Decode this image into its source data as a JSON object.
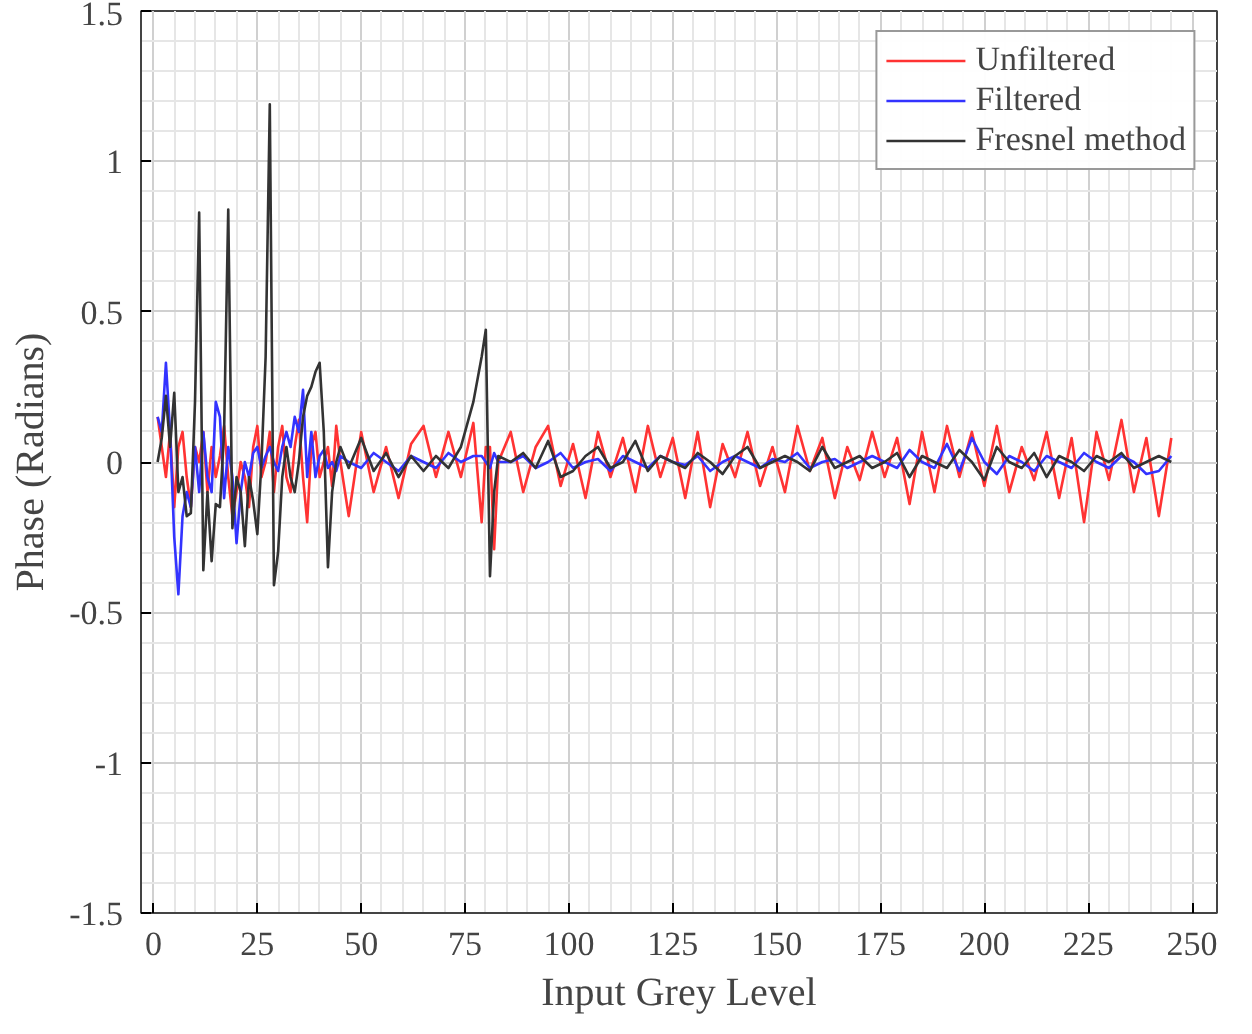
{
  "chart_data": {
    "type": "line",
    "xlabel": "Input Grey Level",
    "ylabel": "Phase (Radians)",
    "xlim": [
      -3,
      256
    ],
    "ylim": [
      -1.5,
      1.5
    ],
    "xticks": [
      0,
      25,
      50,
      75,
      100,
      125,
      150,
      175,
      200,
      225,
      250
    ],
    "yticks": [
      -1.5,
      -1,
      -0.5,
      0,
      0.5,
      1,
      1.5
    ],
    "grid": true,
    "legend": "top right",
    "line_style": "solid",
    "x": [
      1,
      2,
      3,
      4,
      5,
      6,
      7,
      8,
      9,
      10,
      11,
      12,
      13,
      14,
      15,
      16,
      17,
      18,
      19,
      20,
      21,
      22,
      23,
      24,
      25,
      26,
      27,
      28,
      29,
      30,
      31,
      32,
      33,
      34,
      35,
      36,
      37,
      38,
      39,
      40,
      41,
      42,
      43,
      44,
      45,
      47,
      50,
      53,
      56,
      59,
      62,
      65,
      68,
      71,
      74,
      77,
      79,
      80,
      81,
      82,
      83,
      86,
      89,
      92,
      95,
      98,
      101,
      104,
      107,
      110,
      113,
      116,
      119,
      122,
      125,
      128,
      131,
      134,
      137,
      140,
      143,
      146,
      149,
      152,
      155,
      158,
      161,
      164,
      167,
      170,
      173,
      176,
      179,
      182,
      185,
      188,
      191,
      194,
      197,
      200,
      203,
      206,
      209,
      212,
      215,
      218,
      221,
      224,
      227,
      230,
      233,
      236,
      239,
      242,
      245
    ],
    "series": [
      {
        "name": "Unfiltered",
        "color": "#ff3333",
        "values": [
          0.15,
          0.05,
          -0.05,
          0.1,
          -0.15,
          0.05,
          0.1,
          -0.05,
          -0.15,
          0.05,
          0.0,
          0.1,
          -0.1,
          0.05,
          -0.05,
          0.02,
          0.12,
          -0.05,
          -0.18,
          -0.1,
          0.0,
          -0.05,
          -0.15,
          0.05,
          0.12,
          -0.05,
          0.0,
          0.1,
          -0.1,
          0.05,
          0.12,
          -0.05,
          -0.1,
          0.05,
          0.14,
          -0.05,
          -0.2,
          0.05,
          0.1,
          -0.05,
          0.0,
          0.05,
          -0.08,
          0.12,
          0.0,
          -0.18,
          0.1,
          -0.1,
          0.05,
          -0.12,
          0.06,
          0.12,
          -0.05,
          0.1,
          -0.05,
          0.13,
          -0.2,
          0.05,
          0.05,
          -0.29,
          0.0,
          0.1,
          -0.1,
          0.05,
          0.12,
          -0.08,
          0.06,
          -0.12,
          0.1,
          -0.05,
          0.08,
          -0.1,
          0.12,
          -0.05,
          0.08,
          -0.12,
          0.1,
          -0.15,
          0.06,
          -0.05,
          0.1,
          -0.08,
          0.05,
          -0.1,
          0.12,
          -0.03,
          0.08,
          -0.12,
          0.05,
          -0.06,
          0.1,
          -0.05,
          0.08,
          -0.14,
          0.1,
          -0.1,
          0.12,
          -0.05,
          0.1,
          -0.08,
          0.12,
          -0.1,
          0.05,
          -0.06,
          0.1,
          -0.12,
          0.08,
          -0.2,
          0.1,
          -0.06,
          0.14,
          -0.1,
          0.08,
          -0.18,
          0.08
        ]
      },
      {
        "name": "Filtered",
        "color": "#3333ff",
        "values": [
          0.15,
          0.1,
          0.33,
          0.1,
          -0.25,
          -0.44,
          -0.18,
          -0.1,
          -0.15,
          0.05,
          -0.1,
          0.1,
          -0.05,
          -0.1,
          0.2,
          0.15,
          -0.12,
          0.05,
          -0.05,
          -0.27,
          -0.1,
          0.0,
          -0.05,
          0.03,
          0.05,
          -0.02,
          0.02,
          0.05,
          0.0,
          -0.03,
          0.05,
          0.1,
          0.05,
          0.15,
          0.1,
          0.24,
          -0.05,
          0.1,
          -0.05,
          0.02,
          0.04,
          -0.02,
          0.0,
          -0.03,
          0.02,
          0.0,
          -0.02,
          0.03,
          0.0,
          -0.03,
          0.02,
          0.0,
          -0.02,
          0.03,
          0.0,
          0.02,
          0.02,
          0.0,
          -0.02,
          0.03,
          0.0,
          0.0,
          0.02,
          -0.02,
          0.0,
          0.03,
          -0.02,
          0.0,
          0.01,
          -0.03,
          0.02,
          0.0,
          -0.02,
          0.02,
          0.0,
          -0.01,
          0.02,
          -0.03,
          0.0,
          0.02,
          0.0,
          -0.02,
          0.01,
          0.0,
          0.03,
          -0.02,
          0.0,
          0.01,
          -0.02,
          0.0,
          0.02,
          0.0,
          -0.02,
          0.04,
          0.0,
          -0.02,
          0.06,
          -0.03,
          0.08,
          0.0,
          -0.04,
          0.02,
          0.0,
          -0.03,
          0.02,
          0.0,
          -0.02,
          0.03,
          0.0,
          -0.02,
          0.02,
          0.0,
          -0.04,
          -0.03,
          0.02
        ]
      },
      {
        "name": "Fresnel method",
        "color": "#333333",
        "values": [
          0.0,
          0.08,
          0.22,
          0.05,
          0.23,
          -0.1,
          -0.05,
          -0.18,
          -0.17,
          0.2,
          0.83,
          -0.36,
          -0.1,
          -0.33,
          -0.14,
          -0.15,
          0.1,
          0.84,
          -0.22,
          -0.05,
          -0.1,
          -0.28,
          -0.05,
          -0.13,
          -0.24,
          0.0,
          0.35,
          1.19,
          -0.41,
          -0.3,
          -0.05,
          0.05,
          -0.05,
          -0.1,
          0.0,
          0.15,
          0.22,
          0.25,
          0.3,
          0.33,
          0.1,
          -0.35,
          -0.1,
          0.0,
          0.05,
          -0.02,
          0.08,
          -0.03,
          0.03,
          -0.05,
          0.02,
          -0.03,
          0.02,
          -0.02,
          0.05,
          0.2,
          0.35,
          0.44,
          -0.38,
          -0.1,
          0.02,
          0.0,
          0.03,
          -0.02,
          0.07,
          -0.05,
          -0.03,
          0.02,
          0.05,
          -0.02,
          0.0,
          0.07,
          -0.03,
          0.02,
          0.0,
          -0.02,
          0.03,
          0.0,
          -0.04,
          0.02,
          0.05,
          -0.02,
          0.0,
          0.02,
          0.0,
          -0.03,
          0.05,
          -0.02,
          0.0,
          0.02,
          -0.02,
          0.0,
          0.03,
          -0.05,
          0.02,
          0.0,
          -0.02,
          0.04,
          0.0,
          -0.06,
          0.05,
          0.0,
          -0.02,
          0.03,
          -0.05,
          0.02,
          0.0,
          -0.03,
          0.02,
          0.0,
          0.03,
          -0.02,
          0.0,
          0.02,
          0.0
        ]
      }
    ]
  }
}
